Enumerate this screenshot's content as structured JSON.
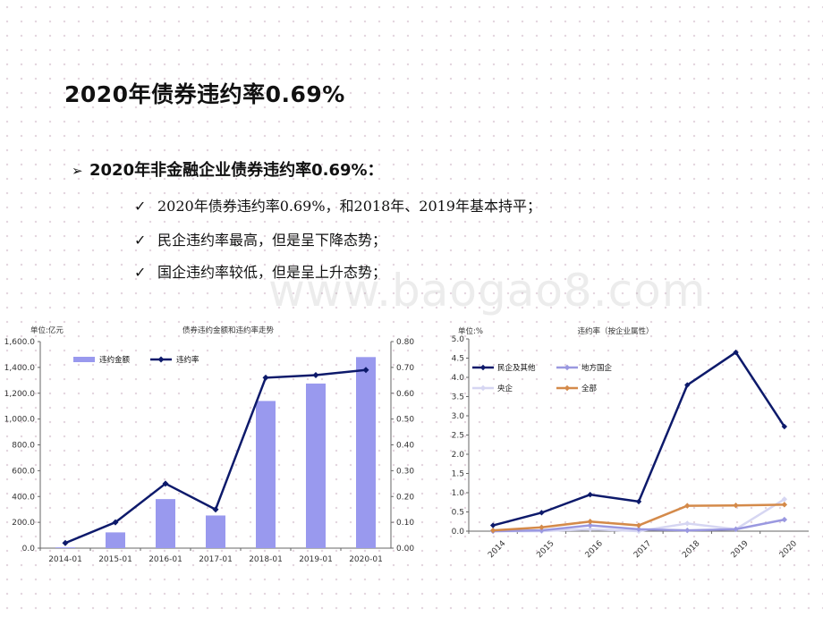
{
  "slide": {
    "title": "2020年债券违约率0.69%",
    "main_bullet": "2020年非金融企业债券违约率0.69%：",
    "points": [
      "2020年债券违约率0.69%，和2018年、2019年基本持平；",
      "民企违约率最高，但是呈下降态势；",
      "国企违约率较低，但是呈上升态势；"
    ],
    "watermark": "www.baogao8.com"
  },
  "chart_data": [
    {
      "type": "bar",
      "title": "债券违约金额和违约率走势",
      "unit_label": "单位:亿元",
      "categories": [
        "2014-01",
        "2015-01",
        "2016-01",
        "2017-01",
        "2018-01",
        "2019-01",
        "2020-01"
      ],
      "series": [
        {
          "name": "违约金额",
          "type": "bar",
          "axis": "left",
          "color": "#9999ee",
          "values": [
            6,
            122,
            380,
            253,
            1140,
            1275,
            1480
          ]
        },
        {
          "name": "违约率",
          "type": "line",
          "axis": "right",
          "color": "#0d1a6b",
          "values": [
            0.02,
            0.1,
            0.25,
            0.15,
            0.66,
            0.67,
            0.69
          ]
        }
      ],
      "y_left": {
        "min": 0,
        "max": 1600,
        "ticks": [
          "0.0",
          "200.0",
          "400.0",
          "600.0",
          "800.0",
          "1,000.0",
          "1,200.0",
          "1,400.0",
          "1,600.0"
        ]
      },
      "y_right": {
        "min": 0,
        "max": 0.8,
        "ticks": [
          "0.00",
          "0.10",
          "0.20",
          "0.30",
          "0.40",
          "0.50",
          "0.60",
          "0.70",
          "0.80"
        ]
      },
      "legend_position": "top-left",
      "grid": false
    },
    {
      "type": "line",
      "title": "违约率（按企业属性）",
      "unit_label": "单位:%",
      "categories": [
        "2014",
        "2015",
        "2016",
        "2017",
        "2018",
        "2019",
        "2020"
      ],
      "series": [
        {
          "name": "民企及其他",
          "color": "#0d1a6b",
          "values": [
            0.15,
            0.48,
            0.95,
            0.77,
            3.8,
            4.65,
            2.72
          ]
        },
        {
          "name": "地方国企",
          "color": "#9a98e0",
          "values": [
            0.0,
            0.02,
            0.15,
            0.05,
            0.02,
            0.05,
            0.3
          ]
        },
        {
          "name": "央企",
          "color": "#d6d6f2",
          "values": [
            0.0,
            0.0,
            0.05,
            0.0,
            0.2,
            0.05,
            0.83
          ]
        },
        {
          "name": "全部",
          "color": "#d48a4a",
          "values": [
            0.02,
            0.1,
            0.25,
            0.15,
            0.66,
            0.67,
            0.69
          ]
        }
      ],
      "y": {
        "min": 0,
        "max": 5,
        "ticks": [
          "0.0",
          "0.5",
          "1.0",
          "1.5",
          "2.0",
          "2.5",
          "3.0",
          "3.5",
          "4.0",
          "4.5",
          "5.0"
        ]
      },
      "legend_position": "top-left",
      "grid": false
    }
  ]
}
